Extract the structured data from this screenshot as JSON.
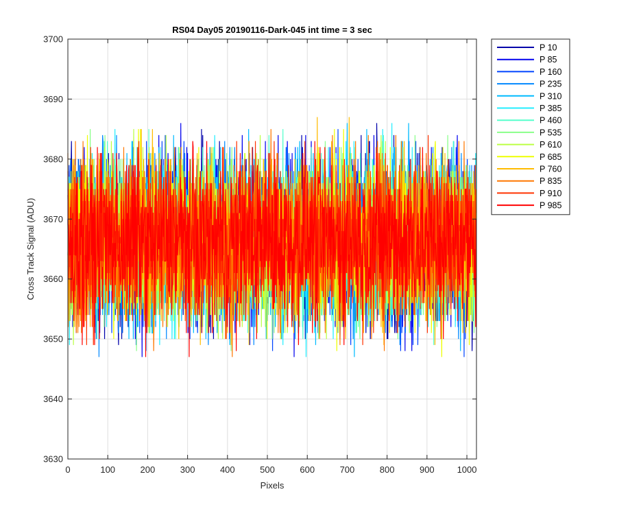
{
  "chart_data": {
    "type": "line",
    "title": "RS04 Day05 20190116-Dark-045 int time = 3 sec",
    "xlabel": "Pixels",
    "ylabel": "Cross Track Signal (ADU)",
    "xlim": [
      0,
      1024
    ],
    "ylim": [
      3630,
      3700
    ],
    "xticks": [
      0,
      100,
      200,
      300,
      400,
      500,
      600,
      700,
      800,
      900,
      1000
    ],
    "yticks": [
      3630,
      3640,
      3650,
      3660,
      3670,
      3680,
      3690,
      3700
    ],
    "grid": true,
    "legend_position": "outside-right",
    "series": [
      {
        "name": "P 10",
        "color": "#0000aa",
        "mean": 3666.5,
        "noise": 7.2
      },
      {
        "name": "P 85",
        "color": "#0000ee",
        "mean": 3666.5,
        "noise": 7.2
      },
      {
        "name": "P 160",
        "color": "#0044ff",
        "mean": 3666.5,
        "noise": 7.0
      },
      {
        "name": "P 235",
        "color": "#0088ff",
        "mean": 3666.5,
        "noise": 7.0
      },
      {
        "name": "P 310",
        "color": "#00bbff",
        "mean": 3666.5,
        "noise": 7.0
      },
      {
        "name": "P 385",
        "color": "#22eeff",
        "mean": 3666.5,
        "noise": 7.0
      },
      {
        "name": "P 460",
        "color": "#55ffcc",
        "mean": 3666.5,
        "noise": 7.0
      },
      {
        "name": "P 535",
        "color": "#88ff88",
        "mean": 3666.5,
        "noise": 7.0
      },
      {
        "name": "P 610",
        "color": "#bbff44",
        "mean": 3666.5,
        "noise": 7.0
      },
      {
        "name": "P 685",
        "color": "#eeff00",
        "mean": 3666.5,
        "noise": 7.0
      },
      {
        "name": "P 760",
        "color": "#ffbb00",
        "mean": 3666.5,
        "noise": 7.0
      },
      {
        "name": "P 835",
        "color": "#ff7700",
        "mean": 3666.5,
        "noise": 7.0
      },
      {
        "name": "P 910",
        "color": "#ff3300",
        "mean": 3666.5,
        "noise": 6.8
      },
      {
        "name": "P 985",
        "color": "#ff0000",
        "mean": 3666.5,
        "noise": 6.8
      }
    ]
  }
}
